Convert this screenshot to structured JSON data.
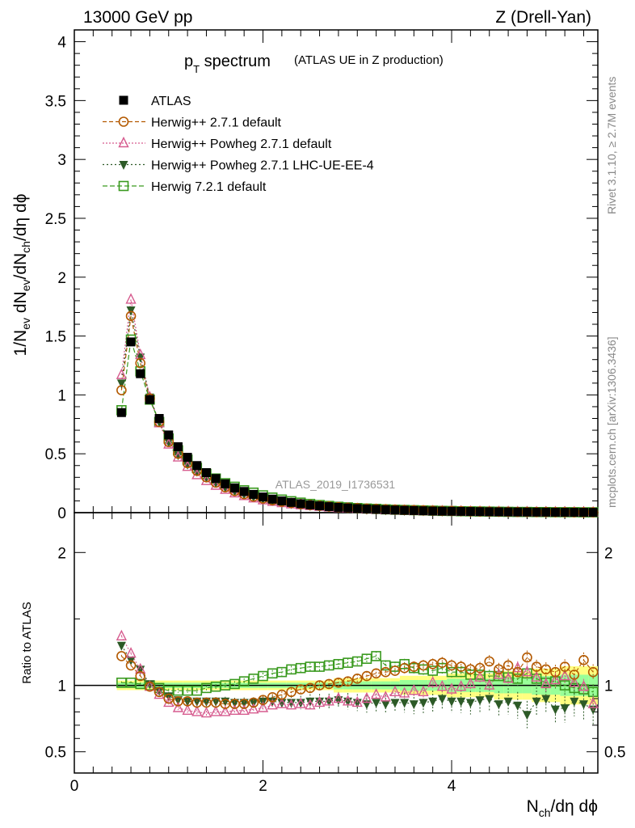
{
  "header": {
    "left": "13000 GeV pp",
    "right": "Z (Drell-Yan)"
  },
  "title_main": "p",
  "title_sub": "T",
  "title_rest": " spectrum",
  "title_note": "(ATLAS UE in Z production)",
  "analysis_id": "ATLAS_2019_I1736531",
  "side_right_1": "Rivet 3.1.10, ≥ 2.7M events",
  "side_right_2": "mcplots.cern.ch [arXiv:1306.3436]",
  "ylabel_ratio": "Ratio to ATLAS",
  "colors": {
    "data": "#000000",
    "herwig_default": "#b35900",
    "powheg": "#d65c8f",
    "powheg_ee4": "#2d5a27",
    "herwig7": "#3a9a1f",
    "band_yellow": "#ffff80",
    "band_green": "#99ff99"
  },
  "chart_data": [
    {
      "type": "scatter",
      "panel": "main",
      "ylabel": "1/N_ev dN_ev/dN_ch/dη dϕ",
      "xlabel": "N_ch/dη dϕ",
      "xlim": [
        0,
        5.55
      ],
      "ylim": [
        0,
        4.1
      ],
      "y_ticks": [
        "0",
        "0.5",
        "1",
        "1.5",
        "2",
        "2.5",
        "3",
        "3.5",
        "4"
      ],
      "legend_position": "top-left",
      "x": [
        0.5,
        0.6,
        0.7,
        0.8,
        0.9,
        1.0,
        1.1,
        1.2,
        1.3,
        1.4,
        1.5,
        1.6,
        1.7,
        1.8,
        1.9,
        2.0,
        2.1,
        2.2,
        2.3,
        2.4,
        2.5,
        2.6,
        2.7,
        2.8,
        2.9,
        3.0,
        3.1,
        3.2,
        3.3,
        3.4,
        3.5,
        3.6,
        3.7,
        3.8,
        3.9,
        4.0,
        4.1,
        4.2,
        4.3,
        4.4,
        4.5,
        4.6,
        4.7,
        4.8,
        4.9,
        5.0,
        5.1,
        5.2,
        5.3,
        5.4,
        5.5
      ],
      "series": [
        {
          "name": "ATLAS",
          "marker": "square-filled",
          "values": [
            0.85,
            1.45,
            1.18,
            0.96,
            0.8,
            0.66,
            0.56,
            0.47,
            0.4,
            0.34,
            0.29,
            0.245,
            0.21,
            0.18,
            0.155,
            0.133,
            0.115,
            0.1,
            0.087,
            0.076,
            0.066,
            0.058,
            0.051,
            0.045,
            0.04,
            0.035,
            0.031,
            0.028,
            0.025,
            0.022,
            0.02,
            0.018,
            0.016,
            0.014,
            0.013,
            0.012,
            0.011,
            0.0098,
            0.0088,
            0.0079,
            0.0071,
            0.0064,
            0.0058,
            0.0052,
            0.0047,
            0.0043,
            0.0039,
            0.0035,
            0.0032,
            0.0029,
            0.0026
          ]
        },
        {
          "name": "Herwig++ 2.7.1 default",
          "marker": "circle-open",
          "values": [
            1.04,
            1.67,
            1.27,
            0.97,
            0.77,
            0.6,
            0.5,
            0.42,
            0.355,
            0.3,
            0.255,
            0.215,
            0.183,
            0.157,
            0.136,
            0.12,
            0.105,
            0.093,
            0.082,
            0.073,
            0.065,
            0.058,
            0.052,
            0.047,
            0.042,
            0.038,
            0.034,
            0.031,
            0.028,
            0.025,
            0.023,
            0.021,
            0.019,
            0.017,
            0.015,
            0.014,
            0.013,
            0.011,
            0.01,
            0.009,
            0.008,
            0.007,
            0.006,
            0.006,
            0.005,
            0.005,
            0.004,
            0.004,
            0.003,
            0.003,
            0.003
          ]
        },
        {
          "name": "Herwig++ Powheg 2.7.1 default",
          "marker": "triangle-open",
          "values": [
            1.17,
            1.81,
            1.34,
            0.98,
            0.76,
            0.58,
            0.47,
            0.39,
            0.32,
            0.27,
            0.23,
            0.195,
            0.165,
            0.142,
            0.122,
            0.106,
            0.093,
            0.082,
            0.072,
            0.064,
            0.057,
            0.051,
            0.045,
            0.04,
            0.036,
            0.032,
            0.028,
            0.025,
            0.022,
            0.02,
            0.018,
            0.016,
            0.014,
            0.013,
            0.012,
            0.011,
            0.01,
            0.009,
            0.008,
            0.007,
            0.006,
            0.006,
            0.005,
            0.005,
            0.004,
            0.004,
            0.004,
            0.003,
            0.003,
            0.003,
            0.002
          ]
        },
        {
          "name": "Herwig++ Powheg 2.7.1 LHC-UE-EE-4",
          "marker": "triangle-down-filled",
          "values": [
            1.1,
            1.72,
            1.32,
            0.98,
            0.77,
            0.6,
            0.49,
            0.41,
            0.35,
            0.3,
            0.255,
            0.215,
            0.183,
            0.157,
            0.135,
            0.117,
            0.1,
            0.087,
            0.075,
            0.066,
            0.058,
            0.051,
            0.045,
            0.04,
            0.035,
            0.031,
            0.027,
            0.024,
            0.022,
            0.019,
            0.017,
            0.015,
            0.014,
            0.013,
            0.011,
            0.01,
            0.009,
            0.008,
            0.007,
            0.007,
            0.006,
            0.005,
            0.005,
            0.004,
            0.004,
            0.004,
            0.003,
            0.003,
            0.003,
            0.002,
            0.002
          ]
        },
        {
          "name": "Herwig 7.2.1 default",
          "marker": "square-open",
          "values": [
            0.87,
            1.47,
            1.2,
            0.96,
            0.77,
            0.63,
            0.53,
            0.45,
            0.38,
            0.33,
            0.29,
            0.25,
            0.22,
            0.19,
            0.17,
            0.147,
            0.128,
            0.111,
            0.097,
            0.085,
            0.074,
            0.065,
            0.057,
            0.05,
            0.045,
            0.039,
            0.035,
            0.032,
            0.028,
            0.025,
            0.023,
            0.021,
            0.019,
            0.017,
            0.015,
            0.014,
            0.012,
            0.011,
            0.01,
            0.009,
            0.008,
            0.007,
            0.006,
            0.006,
            0.005,
            0.005,
            0.004,
            0.004,
            0.004,
            0.003,
            0.003
          ]
        }
      ]
    },
    {
      "type": "scatter",
      "panel": "ratio",
      "ylabel": "Ratio to ATLAS",
      "xlabel": "N_ch/dη dϕ",
      "xlim": [
        0,
        5.55
      ],
      "ylim": [
        0.34,
        2.3
      ],
      "x_ticks": [
        "0",
        "2",
        "4"
      ],
      "y_ticks": [
        "0.5",
        "1",
        "2"
      ],
      "x": [
        0.5,
        0.6,
        0.7,
        0.8,
        0.9,
        1.0,
        1.1,
        1.2,
        1.3,
        1.4,
        1.5,
        1.6,
        1.7,
        1.8,
        1.9,
        2.0,
        2.1,
        2.2,
        2.3,
        2.4,
        2.5,
        2.6,
        2.7,
        2.8,
        2.9,
        3.0,
        3.1,
        3.2,
        3.3,
        3.4,
        3.5,
        3.6,
        3.7,
        3.8,
        3.9,
        4.0,
        4.1,
        4.2,
        4.3,
        4.4,
        4.5,
        4.6,
        4.7,
        4.8,
        4.9,
        5.0,
        5.1,
        5.2,
        5.3,
        5.4,
        5.5
      ],
      "band_halfwidth": [
        0.02,
        0.02,
        0.02,
        0.02,
        0.02,
        0.02,
        0.02,
        0.02,
        0.02,
        0.02,
        0.02,
        0.02,
        0.02,
        0.02,
        0.02,
        0.02,
        0.02,
        0.02,
        0.02,
        0.02,
        0.02,
        0.02,
        0.02,
        0.03,
        0.03,
        0.03,
        0.03,
        0.03,
        0.03,
        0.03,
        0.04,
        0.04,
        0.04,
        0.04,
        0.04,
        0.05,
        0.05,
        0.05,
        0.05,
        0.05,
        0.06,
        0.06,
        0.06,
        0.06,
        0.07,
        0.07,
        0.07,
        0.08,
        0.08,
        0.08,
        0.08
      ],
      "series": [
        {
          "name": "Herwig++ 2.7.1 default",
          "values": [
            1.22,
            1.15,
            1.07,
            0.99,
            0.95,
            0.9,
            0.88,
            0.88,
            0.87,
            0.87,
            0.87,
            0.86,
            0.86,
            0.86,
            0.87,
            0.89,
            0.91,
            0.93,
            0.95,
            0.97,
            0.98,
            1.0,
            1.01,
            1.02,
            1.03,
            1.05,
            1.07,
            1.09,
            1.1,
            1.11,
            1.13,
            1.14,
            1.15,
            1.16,
            1.17,
            1.15,
            1.14,
            1.12,
            1.13,
            1.18,
            1.12,
            1.15,
            1.1,
            1.21,
            1.14,
            1.12,
            1.1,
            1.14,
            1.08,
            1.19,
            1.1
          ]
        },
        {
          "name": "Herwig++ Powheg 2.7.1 default",
          "values": [
            1.37,
            1.24,
            1.12,
            0.99,
            0.93,
            0.87,
            0.83,
            0.81,
            0.8,
            0.79,
            0.8,
            0.8,
            0.81,
            0.81,
            0.82,
            0.83,
            0.85,
            0.86,
            0.85,
            0.86,
            0.85,
            0.87,
            0.88,
            0.9,
            0.88,
            0.87,
            0.9,
            0.93,
            0.91,
            0.95,
            0.94,
            0.96,
            0.95,
            1.02,
            0.99,
            0.97,
            0.99,
            1.01,
            1.06,
            1.0,
            1.08,
            1.05,
            1.13,
            1.1,
            1.06,
            1.01,
            1.04,
            1.07,
            1.02,
            0.99,
            0.86
          ]
        },
        {
          "name": "Herwig++ Powheg 2.7.1 LHC-UE-EE-4",
          "values": [
            1.3,
            1.19,
            1.12,
            1.01,
            0.96,
            0.92,
            0.89,
            0.88,
            0.88,
            0.88,
            0.88,
            0.88,
            0.87,
            0.87,
            0.87,
            0.88,
            0.88,
            0.87,
            0.87,
            0.87,
            0.88,
            0.88,
            0.88,
            0.89,
            0.88,
            0.87,
            0.86,
            0.87,
            0.86,
            0.87,
            0.87,
            0.86,
            0.87,
            0.88,
            0.9,
            0.88,
            0.88,
            0.87,
            0.89,
            0.9,
            0.86,
            0.88,
            0.85,
            0.78,
            0.88,
            0.9,
            0.82,
            0.83,
            0.88,
            0.86,
            0.82
          ]
        },
        {
          "name": "Herwig 7.2.1 default",
          "values": [
            1.02,
            1.02,
            1.01,
            1.0,
            0.98,
            0.96,
            0.96,
            0.96,
            0.96,
            0.98,
            0.99,
            1.0,
            1.01,
            1.03,
            1.05,
            1.07,
            1.09,
            1.1,
            1.12,
            1.13,
            1.14,
            1.14,
            1.15,
            1.16,
            1.17,
            1.18,
            1.2,
            1.22,
            1.15,
            1.14,
            1.16,
            1.13,
            1.12,
            1.11,
            1.13,
            1.1,
            1.1,
            1.08,
            1.08,
            1.07,
            1.07,
            1.06,
            1.05,
            1.09,
            1.05,
            1.02,
            1.03,
            1.0,
            0.98,
            0.97,
            0.95
          ]
        }
      ]
    }
  ]
}
